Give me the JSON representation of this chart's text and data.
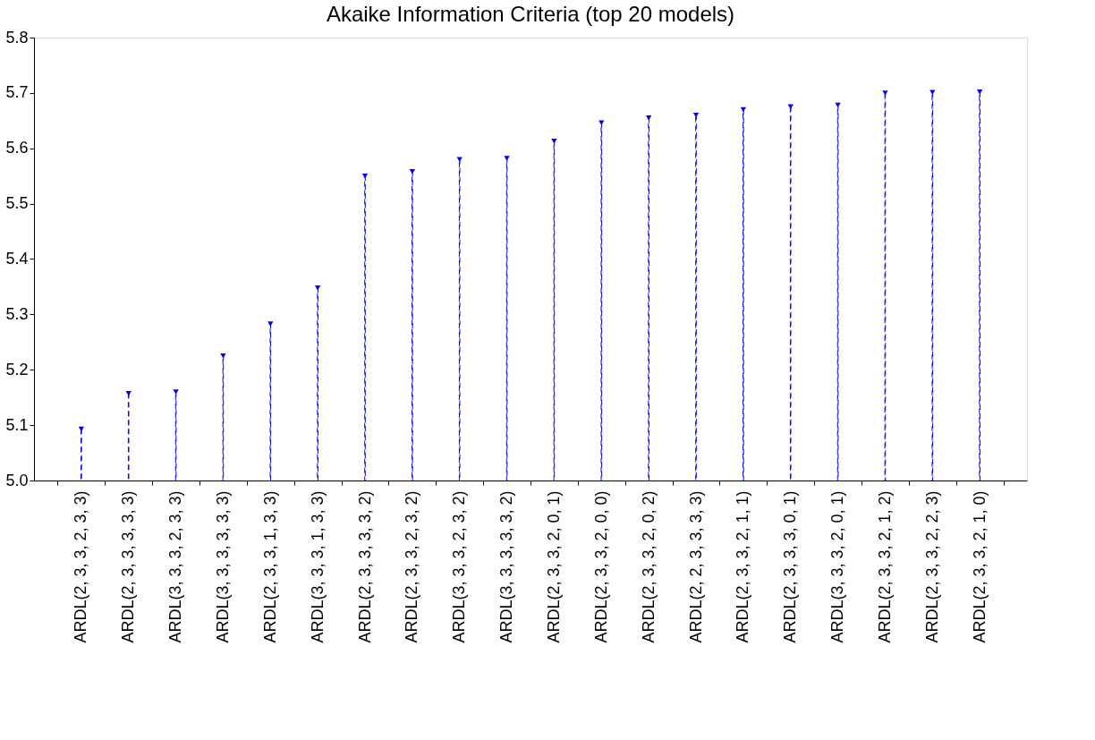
{
  "chart_data": {
    "type": "lollipop",
    "title": "Akaike Information Criteria (top 20 models)",
    "categories": [
      "ARDL(2, 3, 3, 2, 3, 3)",
      "ARDL(2, 3, 3, 3, 3, 3)",
      "ARDL(3, 3, 3, 2, 3, 3)",
      "ARDL(3, 3, 3, 3, 3, 3)",
      "ARDL(2, 3, 3, 1, 3, 3)",
      "ARDL(3, 3, 3, 1, 3, 3)",
      "ARDL(2, 3, 3, 3, 3, 2)",
      "ARDL(2, 3, 3, 2, 3, 2)",
      "ARDL(3, 3, 3, 2, 3, 2)",
      "ARDL(3, 3, 3, 3, 3, 2)",
      "ARDL(2, 3, 3, 2, 0, 1)",
      "ARDL(2, 3, 3, 2, 0, 0)",
      "ARDL(2, 3, 3, 2, 0, 2)",
      "ARDL(2, 2, 3, 3, 3, 3)",
      "ARDL(2, 3, 3, 2, 1, 1)",
      "ARDL(2, 3, 3, 3, 0, 1)",
      "ARDL(3, 3, 3, 2, 0, 1)",
      "ARDL(2, 3, 3, 2, 1, 2)",
      "ARDL(2, 3, 3, 2, 2, 3)",
      "ARDL(2, 3, 3, 2, 1, 0)"
    ],
    "values": [
      5.093,
      5.157,
      5.16,
      5.225,
      5.283,
      5.348,
      5.55,
      5.558,
      5.58,
      5.582,
      5.613,
      5.646,
      5.655,
      5.66,
      5.67,
      5.675,
      5.678,
      5.7,
      5.701,
      5.702
    ],
    "color": "#0000ff",
    "ylim": [
      5.0,
      5.8
    ],
    "yticks": [
      {
        "value": 5,
        "label": "5.0"
      },
      5.1,
      5.2,
      5.3,
      5.4,
      5.5,
      5.6,
      5.7,
      5.8
    ],
    "grid": false,
    "marker": "triangle",
    "line_style": "dashed"
  }
}
